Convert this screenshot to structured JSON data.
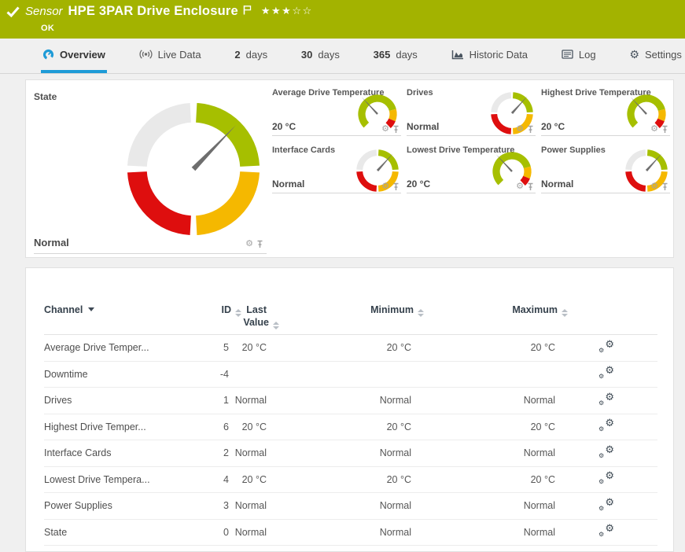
{
  "colors": {
    "header_green": "#a3b300",
    "accent_blue": "#1e9bd7",
    "gauge_green": "#a6bf00",
    "gauge_yellow": "#f5b800",
    "gauge_red": "#de0e0e",
    "gauge_gray": "#e9e9e9",
    "needle_gray": "#6e6e6e"
  },
  "header": {
    "kind_label": "Sensor",
    "title": "HPE 3PAR Drive Enclosure",
    "status": "OK",
    "rating": {
      "filled": 3,
      "total": 5
    }
  },
  "tabs": [
    {
      "label": "Overview",
      "icon": "gauge-icon",
      "active": true
    },
    {
      "label": "Live Data",
      "icon": "live-data-icon"
    },
    {
      "number": "2",
      "label": "days"
    },
    {
      "number": "30",
      "label": "days"
    },
    {
      "number": "365",
      "label": "days"
    },
    {
      "label": "Historic Data",
      "icon": "historic-data-icon"
    },
    {
      "label": "Log",
      "icon": "log-icon"
    },
    {
      "label": "Settings",
      "icon": "settings-gear-icon"
    }
  ],
  "gauges": {
    "state": {
      "label": "State",
      "value": "Normal",
      "type": "status",
      "needle_angle": 44
    },
    "tiles": [
      {
        "label": "Average Drive Temperature",
        "value": "20 °C",
        "type": "temperature",
        "needle_angle": -43
      },
      {
        "label": "Drives",
        "value": "Normal",
        "type": "status",
        "needle_angle": 42
      },
      {
        "label": "Highest Drive Temperature",
        "value": "20 °C",
        "type": "temperature",
        "needle_angle": -43
      },
      {
        "label": "Interface Cards",
        "value": "Normal",
        "type": "status",
        "needle_angle": 42
      },
      {
        "label": "Lowest Drive Temperature",
        "value": "20 °C",
        "type": "temperature",
        "needle_angle": -43
      },
      {
        "label": "Power Supplies",
        "value": "Normal",
        "type": "status",
        "needle_angle": 42
      }
    ]
  },
  "table": {
    "columns": [
      {
        "key": "channel",
        "label": "Channel",
        "sort": "active-desc",
        "align": "left"
      },
      {
        "key": "id",
        "label": "ID",
        "sort": "both",
        "align": "right"
      },
      {
        "key": "last",
        "label": "Last Value",
        "sort": "both",
        "align": "right"
      },
      {
        "key": "min",
        "label": "Minimum",
        "sort": "both",
        "align": "right"
      },
      {
        "key": "max",
        "label": "Maximum",
        "sort": "both",
        "align": "right"
      }
    ],
    "rows": [
      {
        "channel": "Average Drive Temper...",
        "id": "5",
        "last": "20 °C",
        "min": "20 °C",
        "max": "20 °C"
      },
      {
        "channel": "Downtime",
        "id": "-4",
        "last": "",
        "min": "",
        "max": ""
      },
      {
        "channel": "Drives",
        "id": "1",
        "last": "Normal",
        "min": "Normal",
        "max": "Normal"
      },
      {
        "channel": "Highest Drive Temper...",
        "id": "6",
        "last": "20 °C",
        "min": "20 °C",
        "max": "20 °C"
      },
      {
        "channel": "Interface Cards",
        "id": "2",
        "last": "Normal",
        "min": "Normal",
        "max": "Normal"
      },
      {
        "channel": "Lowest Drive Tempera...",
        "id": "4",
        "last": "20 °C",
        "min": "20 °C",
        "max": "20 °C"
      },
      {
        "channel": "Power Supplies",
        "id": "3",
        "last": "Normal",
        "min": "Normal",
        "max": "Normal"
      },
      {
        "channel": "State",
        "id": "0",
        "last": "Normal",
        "min": "Normal",
        "max": "Normal"
      }
    ]
  }
}
